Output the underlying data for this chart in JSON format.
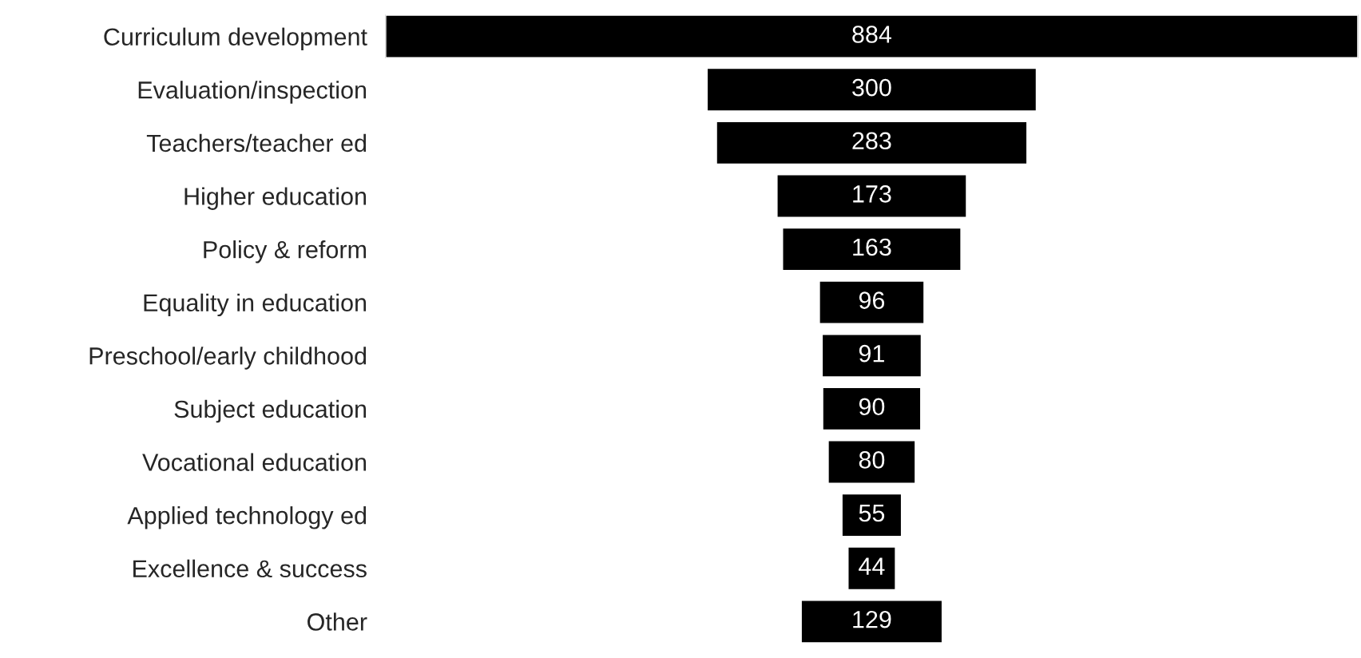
{
  "chart_data": {
    "type": "other",
    "categories": [
      "Curriculum development",
      "Evaluation/inspection",
      "Teachers/teacher ed",
      "Higher education",
      "Policy & reform",
      "Equality in education",
      "Preschool/early childhood",
      "Subject education",
      "Vocational education",
      "Applied technology ed",
      "Excellence & success",
      "Other"
    ],
    "values": [
      884,
      300,
      283,
      173,
      163,
      96,
      91,
      90,
      80,
      55,
      44,
      129
    ],
    "color": "#000000",
    "data_labels": true
  }
}
